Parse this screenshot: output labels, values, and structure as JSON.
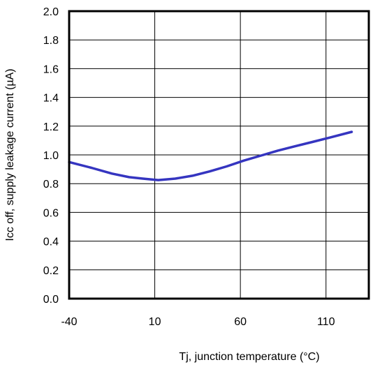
{
  "chart_data": {
    "type": "line",
    "title": "",
    "xlabel": "Tj, junction temperature (°C)",
    "ylabel": "Icc off, supply leakage current (µA)",
    "xlim": [
      -40,
      135
    ],
    "ylim": [
      0,
      2.0
    ],
    "x_ticks": [
      -40,
      10,
      60,
      110
    ],
    "x_tick_labels": [
      "-40",
      "10",
      "60",
      "110"
    ],
    "y_ticks": [
      0,
      0.2,
      0.4,
      0.6,
      0.8,
      1.0,
      1.2,
      1.4,
      1.6,
      1.8,
      2.0
    ],
    "y_tick_labels": [
      "0.0",
      "0.2",
      "0.4",
      "0.6",
      "0.8",
      "1.0",
      "1.2",
      "1.4",
      "1.6",
      "1.8",
      "2.0"
    ],
    "grid": true,
    "legend": "none",
    "series": [
      {
        "color": "#3535c0",
        "x": [
          -40,
          -27,
          -15,
          -5,
          3,
          12,
          22,
          32,
          42,
          52,
          62,
          72,
          82,
          92,
          102,
          112,
          125
        ],
        "y": [
          0.95,
          0.91,
          0.87,
          0.845,
          0.835,
          0.825,
          0.835,
          0.855,
          0.885,
          0.92,
          0.96,
          0.995,
          1.03,
          1.06,
          1.09,
          1.12,
          1.16
        ]
      }
    ]
  }
}
